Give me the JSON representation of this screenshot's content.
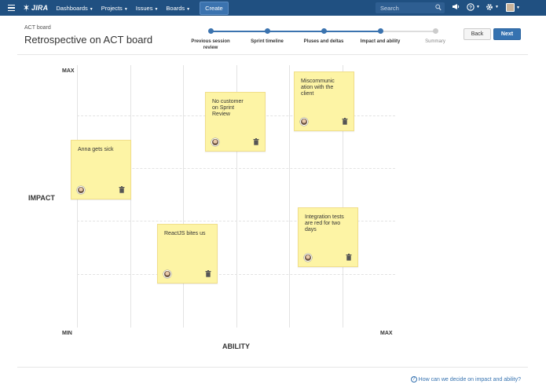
{
  "nav": {
    "logo_text": "JIRA",
    "items": [
      {
        "label": "Dashboards"
      },
      {
        "label": "Projects"
      },
      {
        "label": "Issues"
      },
      {
        "label": "Boards"
      }
    ],
    "create_label": "Create",
    "search_placeholder": "Search",
    "brand_color": "#205081"
  },
  "header": {
    "breadcrumb": "ACT board",
    "title": "Retrospective on ACT board",
    "back_label": "Back",
    "next_label": "Next"
  },
  "stepper": {
    "steps": [
      {
        "label": "Previous session review",
        "state": "done"
      },
      {
        "label": "Sprint timeline",
        "state": "done"
      },
      {
        "label": "Pluses and deltas",
        "state": "done"
      },
      {
        "label": "Impact and ability",
        "state": "current"
      },
      {
        "label": "Summary",
        "state": "pending"
      }
    ]
  },
  "board": {
    "y_axis": {
      "title": "IMPACT",
      "max_label": "MAX",
      "min_label": "MIN"
    },
    "x_axis": {
      "title": "ABILITY",
      "min_label": "MIN",
      "max_label": "MAX"
    },
    "stickies": [
      {
        "text": "Anna gets sick"
      },
      {
        "text": "ReactJS bites us"
      },
      {
        "text": "No customer on Sprint Review"
      },
      {
        "text": "Miscommunication with the client"
      },
      {
        "text": "Integration tests are red for two days"
      }
    ],
    "sticky_color": "#fdf4a5"
  },
  "footer": {
    "help_text": "How can we decide on impact and ability?"
  }
}
